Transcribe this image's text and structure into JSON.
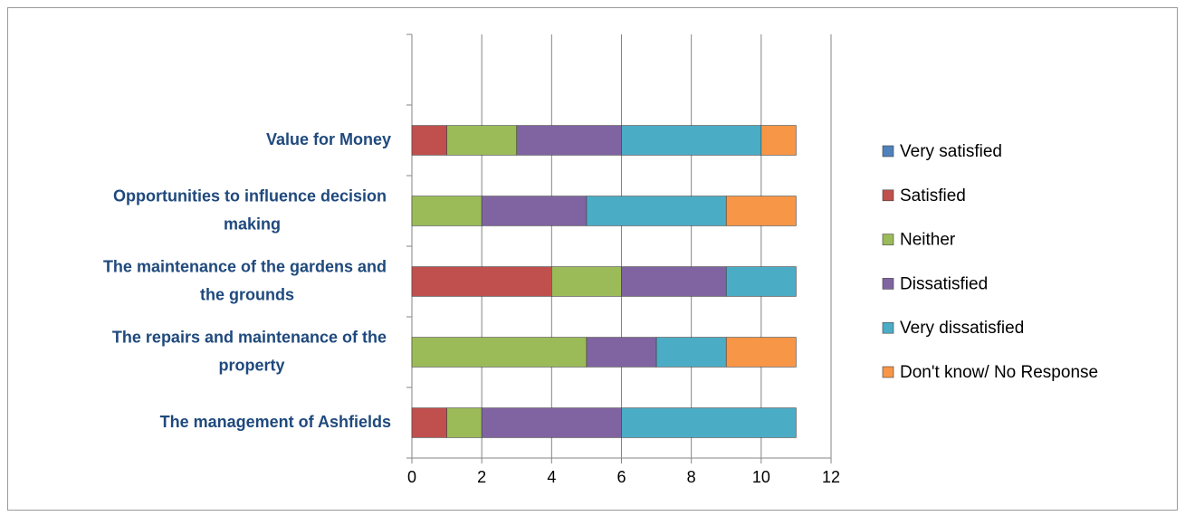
{
  "chart_data": {
    "type": "stacked-bar-horizontal",
    "categories": [
      "The management of Ashfields",
      "The repairs and maintenance of the property",
      "The maintenance of the gardens and the grounds",
      "Opportunities to influence decision making",
      "Value for Money",
      null
    ],
    "series": [
      {
        "name": "Very satisfied",
        "color": "#4f81bd",
        "values": [
          0,
          0,
          0,
          0,
          0,
          null
        ]
      },
      {
        "name": "Satisfied",
        "color": "#c0504d",
        "values": [
          1,
          0,
          4,
          0,
          1,
          null
        ]
      },
      {
        "name": "Neither",
        "color": "#9bbb59",
        "values": [
          1,
          5,
          2,
          2,
          2,
          null
        ]
      },
      {
        "name": "Dissatisfied",
        "color": "#8064a2",
        "values": [
          4,
          2,
          3,
          3,
          3,
          null
        ]
      },
      {
        "name": "Very dissatisfied",
        "color": "#4bacc6",
        "values": [
          5,
          2,
          2,
          4,
          4,
          null
        ]
      },
      {
        "name": "Don't know/ No Response",
        "color": "#f79646",
        "values": [
          0,
          2,
          0,
          2,
          1,
          null
        ]
      }
    ],
    "xlim": [
      0,
      12
    ],
    "xticks": [
      0,
      2,
      4,
      6,
      8,
      10,
      12
    ],
    "grid": true,
    "legend": "right"
  }
}
